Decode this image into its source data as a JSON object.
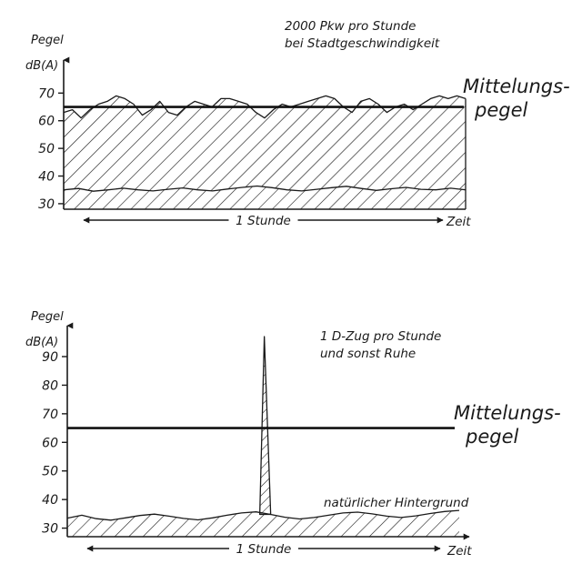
{
  "chart_data": [
    {
      "type": "area",
      "note": [
        "2000 Pkw  pro Stunde",
        "bei Stadtgeschwindigkeit"
      ],
      "ylabel": [
        "Pegel",
        "dB(A)"
      ],
      "xlabel": "Zeit",
      "duration_label": "1 Stunde",
      "mean_label": [
        "Mittelungs-",
        "pegel"
      ],
      "yticks": [
        30,
        40,
        50,
        60,
        70
      ],
      "ylim": [
        28,
        78
      ],
      "mean_level": 65,
      "level_profile": [
        63,
        64,
        61,
        64,
        66,
        67,
        69,
        68,
        66,
        62,
        64,
        67,
        63,
        62,
        65,
        67,
        66,
        65,
        68,
        68,
        67,
        66,
        63,
        61,
        64,
        66,
        65,
        66,
        67,
        68,
        69,
        68,
        65,
        63,
        67,
        68,
        66,
        63,
        65,
        66,
        64,
        66,
        68,
        69,
        68,
        69,
        68
      ],
      "background_profile": [
        35,
        35.5,
        34.5,
        35,
        35.6,
        35,
        34.6,
        35.2,
        35.7,
        35,
        34.6,
        35.3,
        35.9,
        36.4,
        35.8,
        35,
        34.6,
        35.2,
        35.8,
        36.3,
        35.5,
        34.8,
        35.4,
        35.9,
        35.2,
        35,
        35.6,
        35
      ]
    },
    {
      "type": "area",
      "note": [
        "1 D-Zug pro Stunde",
        "und sonst Ruhe"
      ],
      "ylabel": [
        "Pegel",
        "dB(A)"
      ],
      "xlabel": "Zeit",
      "duration_label": "1 Stunde",
      "mean_label": [
        "Mittelungs-",
        "pegel"
      ],
      "background_label": "natürlicher Hintergrund",
      "yticks": [
        30,
        40,
        50,
        60,
        70,
        80,
        90
      ],
      "ylim": [
        27,
        97
      ],
      "mean_level": 65,
      "peak_level": 97,
      "peak_position": 0.505,
      "background_profile": [
        33.5,
        34.5,
        33.3,
        32.8,
        33.6,
        34.4,
        34.9,
        34.2,
        33.4,
        32.9,
        33.6,
        34.5,
        35.3,
        35.7,
        34.8,
        33.8,
        33.2,
        33.7,
        34.5,
        35.3,
        35.6,
        35,
        34.2,
        33.7,
        34.3,
        35.1,
        35.8,
        36.2
      ]
    }
  ]
}
